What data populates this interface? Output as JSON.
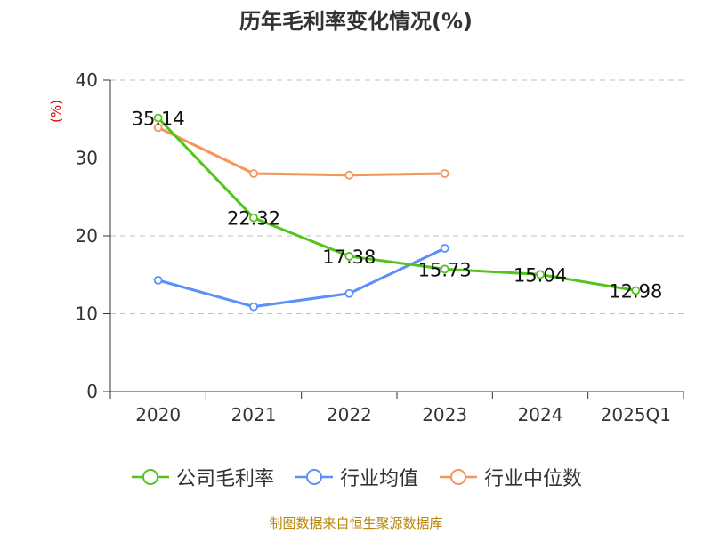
{
  "chart_data": {
    "type": "line",
    "title": "历年毛利率变化情况(%)",
    "ylabel": "(%)",
    "xlabel": "",
    "categories": [
      "2020",
      "2021",
      "2022",
      "2023",
      "2024",
      "2025Q1"
    ],
    "ylim": [
      0,
      40
    ],
    "yticks": [
      0,
      10,
      20,
      30,
      40
    ],
    "grid": true,
    "legend_position": "bottom",
    "series": [
      {
        "name": "公司毛利率",
        "color": "#52c41a",
        "values": [
          35.14,
          22.32,
          17.38,
          15.73,
          15.04,
          12.98
        ],
        "labels": [
          "35.14",
          "22.32",
          "17.38",
          "15.73",
          "15.04",
          "12.98"
        ]
      },
      {
        "name": "行业均值",
        "color": "#5b8ff9",
        "values": [
          14.3,
          10.9,
          12.6,
          18.4,
          null,
          null
        ]
      },
      {
        "name": "行业中位数",
        "color": "#f6945a",
        "values": [
          33.9,
          28.0,
          27.8,
          28.0,
          null,
          null
        ]
      }
    ]
  },
  "source_text": "制图数据来自恒生聚源数据库"
}
